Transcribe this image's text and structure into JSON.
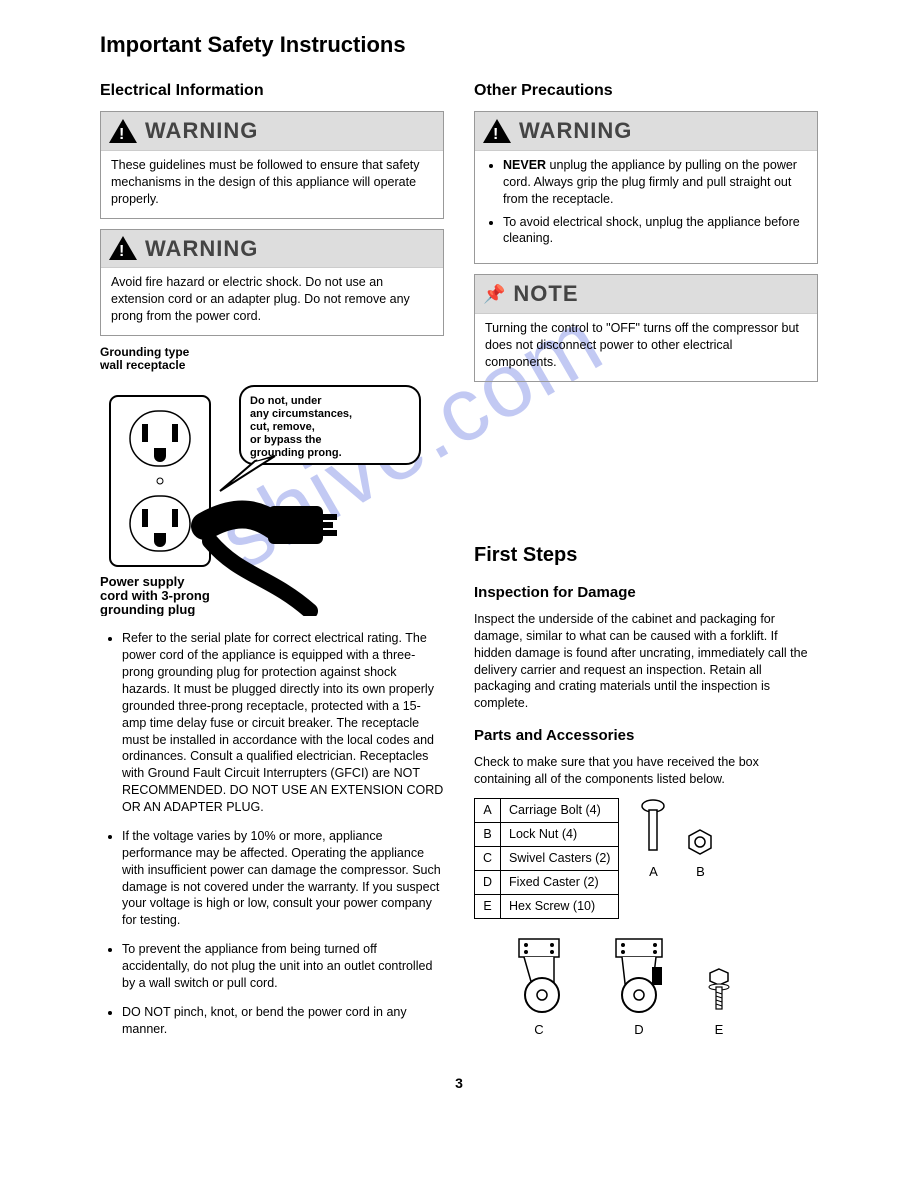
{
  "watermark": "shive.com",
  "title": "Important Safety Instructions",
  "left": {
    "h2": "Electrical Information",
    "warn1": {
      "title": "WARNING",
      "body": "These guidelines must be followed to ensure that safety mechanisms in the design of this appliance will operate properly."
    },
    "warn2": {
      "title": "WARNING",
      "body": "Avoid fire hazard or electric shock. Do not use an extension cord or an adapter plug. Do not remove any prong from the power cord."
    },
    "diagram": {
      "label_top": "Grounding type\nwall receptacle",
      "bubble": "Do not, under any circumstances, cut, remove, or bypass the grounding prong.",
      "label_bottom": "Power supply cord with 3-prong grounding plug"
    },
    "bullets": [
      "Refer to the serial plate for correct electrical rating. The power cord of the appliance is equipped with a three-prong grounding plug for protection against shock hazards. It must be plugged directly into its own properly grounded three-prong receptacle, protected with a 15-amp time delay fuse or circuit breaker. The receptacle must be installed in accordance with the local codes and ordinances. Consult a qualified electrician. Receptacles with Ground Fault Circuit Interrupters (GFCI) are NOT RECOMMENDED. DO NOT USE AN EXTENSION CORD OR AN ADAPTER PLUG.",
      "If the voltage varies by 10% or more, appliance performance may be affected. Operating the appliance with insufficient power can damage the compressor. Such damage is not covered under the warranty. If you suspect your voltage is high or low, consult your power company for testing.",
      "To prevent the appliance from being turned off accidentally, do not plug the unit into an outlet controlled by a wall switch or pull cord.",
      "DO NOT pinch, knot, or bend the power cord in any manner."
    ]
  },
  "right": {
    "h2": "Other Precautions",
    "warn": {
      "title": "WARNING",
      "items": [
        "<b>NEVER</b> unplug the appliance by pulling on the power cord. Always grip the plug firmly and pull straight out from the receptacle.",
        "To avoid electrical shock, unplug the appliance before cleaning."
      ]
    },
    "note": {
      "title": "NOTE",
      "body": "Turning the control to \"OFF\" turns off the compressor but does not disconnect power to other electrical components."
    },
    "first_steps": {
      "h2": "First Steps",
      "inspection": {
        "h3": "Inspection for Damage",
        "body": "Inspect the underside of the cabinet and packaging for damage, similar to what can be caused with a forklift. If hidden damage is found after uncrating, immediately call the delivery carrier and request an inspection. Retain all packaging and crating materials until the inspection is complete."
      },
      "parts": {
        "h3": "Parts and Accessories",
        "intro": "Check to make sure that you have received the box containing all of the components listed below.",
        "rows": [
          [
            "A",
            "Carriage Bolt (4)"
          ],
          [
            "B",
            "Lock Nut (4)"
          ],
          [
            "C",
            "Swivel Casters (2)"
          ],
          [
            "D",
            "Fixed Caster (2)"
          ],
          [
            "E",
            "Hex Screw (10)"
          ]
        ],
        "icon_labels_top": [
          "A",
          "B"
        ],
        "icon_labels_bottom": [
          "C",
          "D",
          "E"
        ]
      }
    }
  },
  "page_number": "3"
}
